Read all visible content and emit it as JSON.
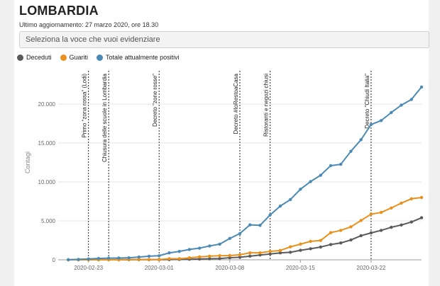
{
  "page": {
    "title": "LOMBARDIA",
    "updated": "Ultimo aggiornamento: 27 marzo 2020, ore 18.30",
    "selector_placeholder": "Seleziona la voce che vuoi evidenziare"
  },
  "chart_data": {
    "type": "line",
    "ylabel": "Contagi",
    "xlim": [
      "2020-02-20",
      "2020-03-27"
    ],
    "ylim": [
      0,
      25000
    ],
    "yticks": [
      0,
      5000,
      10000,
      15000,
      20000
    ],
    "ytick_labels": [
      "0",
      "5.000",
      "10.000",
      "15.000",
      "20.000"
    ],
    "xticks": [
      "2020-02-23",
      "2020-03-01",
      "2020-03-08",
      "2020-03-15",
      "2020-03-22"
    ],
    "grid": true,
    "legend_placement": "top-left",
    "x": [
      "2020-02-21",
      "2020-02-22",
      "2020-02-23",
      "2020-02-24",
      "2020-02-25",
      "2020-02-26",
      "2020-02-27",
      "2020-02-28",
      "2020-02-29",
      "2020-03-01",
      "2020-03-02",
      "2020-03-03",
      "2020-03-04",
      "2020-03-05",
      "2020-03-06",
      "2020-03-07",
      "2020-03-08",
      "2020-03-09",
      "2020-03-10",
      "2020-03-11",
      "2020-03-12",
      "2020-03-13",
      "2020-03-14",
      "2020-03-15",
      "2020-03-16",
      "2020-03-17",
      "2020-03-18",
      "2020-03-19",
      "2020-03-20",
      "2020-03-21",
      "2020-03-22",
      "2020-03-23",
      "2020-03-24",
      "2020-03-25",
      "2020-03-26",
      "2020-03-27"
    ],
    "series": [
      {
        "name": "Deceduti",
        "color": "#5a5a5a",
        "values": [
          0,
          6,
          9,
          9,
          14,
          19,
          17,
          19,
          20,
          24,
          30,
          55,
          73,
          98,
          135,
          154,
          267,
          333,
          468,
          617,
          744,
          890,
          966,
          1218,
          1420,
          1640,
          1959,
          2168,
          2549,
          3095,
          3456,
          3776,
          4178,
          4474,
          4861,
          5402
        ]
      },
      {
        "name": "Guariti",
        "color": "#e8911c",
        "values": [
          0,
          0,
          0,
          0,
          0,
          0,
          40,
          40,
          40,
          40,
          139,
          139,
          250,
          376,
          469,
          524,
          550,
          646,
          896,
          900,
          1085,
          1198,
          1660,
          2011,
          2368,
          2485,
          3488,
          3778,
          4235,
          5050,
          5865,
          6084,
          6657,
          7281,
          7839,
          8001
        ]
      },
      {
        "name": "Totale attualmente positivi",
        "color": "#4a8ab5",
        "values": [
          15,
          54,
          110,
          167,
          216,
          231,
          256,
          354,
          462,
          521,
          887,
          1077,
          1326,
          1497,
          1777,
          2008,
          2742,
          3372,
          4490,
          4427,
          5763,
          6896,
          7732,
          9059,
          10043,
          10861,
          12095,
          12266,
          13938,
          15420,
          17370,
          17885,
          18910,
          19868,
          20591,
          22189
        ]
      }
    ],
    "annotations": [
      {
        "x": "2020-02-23",
        "label": "Primo \"zona rossa\" (Lodi)"
      },
      {
        "x": "2020-02-25",
        "label": "Chiusura delle scuole in Lombardia"
      },
      {
        "x": "2020-03-01",
        "label": "Decreto \"zone rosse\""
      },
      {
        "x": "2020-03-09",
        "label": "Decreto #IoRestoaCasa"
      },
      {
        "x": "2020-03-12",
        "label": "Ristoranti e negozi chiusi"
      },
      {
        "x": "2020-03-22",
        "label": "Decreto \"Chiudi Italia\""
      }
    ]
  }
}
